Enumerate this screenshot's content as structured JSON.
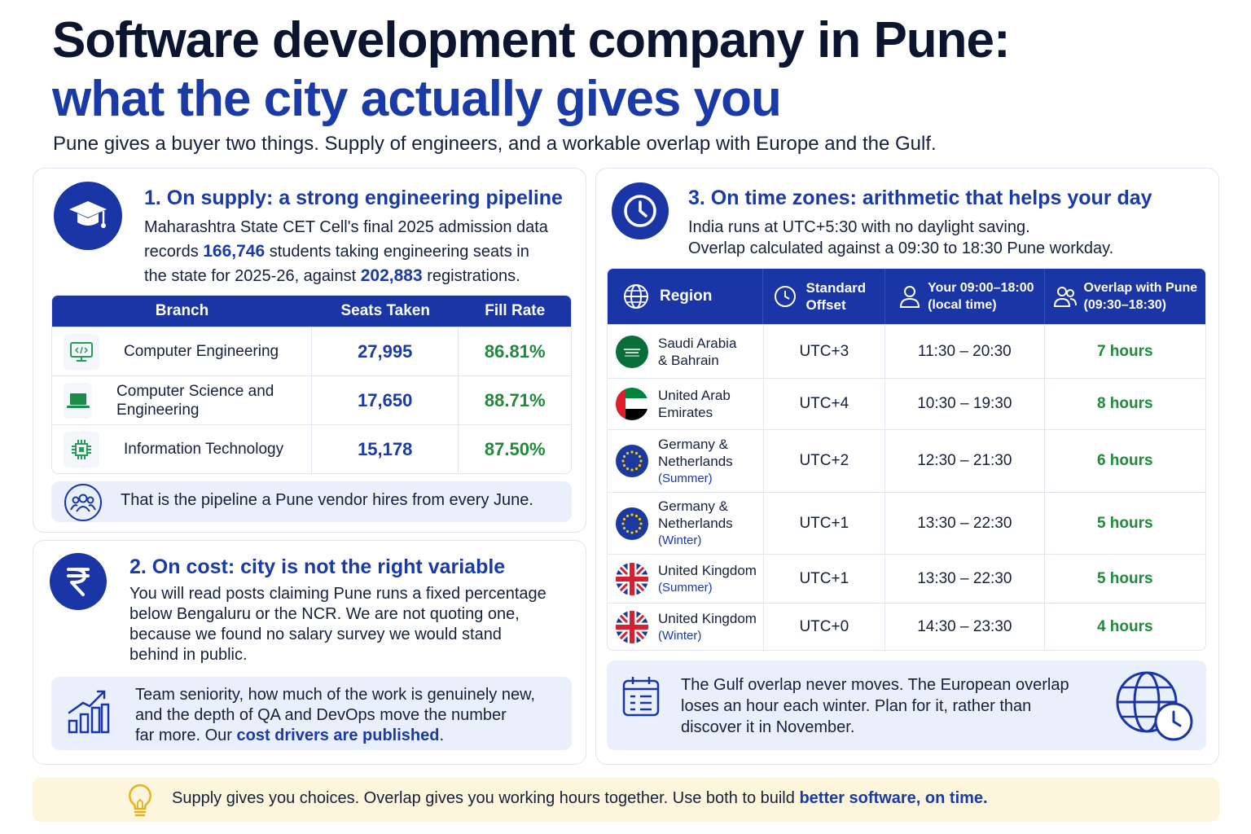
{
  "header": {
    "title_line1": "Software development company in Pune:",
    "title_line2": "what the city actually gives you",
    "subtitle": "Pune gives a buyer two things. Supply of engineers, and a workable overlap with Europe and the Gulf."
  },
  "supply": {
    "title": "1. On supply: a strong engineering pipeline",
    "text_line1": "Maharashtra State CET Cell's final 2025 admission data",
    "text_line2_pre": "records ",
    "students": "166,746",
    "text_line2_post": " students taking engineering seats in",
    "text_line3_pre": "the state for 2025-26, against ",
    "registrations": "202,883",
    "text_line3_post": " registrations.",
    "table_headers": [
      "Branch",
      "Seats Taken",
      "Fill Rate"
    ],
    "rows": [
      {
        "icon": "code-monitor-icon",
        "branch": "Computer Engineering",
        "seats": "27,995",
        "fill": "86.81%"
      },
      {
        "icon": "laptop-icon",
        "branch": "Computer Science and Engineering",
        "seats": "17,650",
        "fill": "88.71%"
      },
      {
        "icon": "chip-icon",
        "branch": "Information Technology",
        "seats": "15,178",
        "fill": "87.50%"
      }
    ],
    "note": "That is the pipeline a Pune vendor hires from every June."
  },
  "cost": {
    "title": "2. On cost: city is not the right variable",
    "text_line1": "You will read posts claiming Pune runs a fixed percentage",
    "text_line2": "below Bengaluru or the NCR. We are not quoting one,",
    "text_line3": "because we found no salary survey we would stand",
    "text_line4": "behind in public.",
    "note_line1": "Team seniority, how much of the work is genuinely new,",
    "note_line2": "and the depth of QA and DevOps move the number",
    "note_line3_pre": "far more. Our ",
    "note_link": "cost drivers are published",
    "note_line3_post": "."
  },
  "timezones": {
    "title": "3. On time zones: arithmetic that helps your day",
    "text_line1": "India runs at UTC+5:30 with no daylight saving.",
    "text_line2": "Overlap calculated against a 09:30 to 18:30 Pune workday.",
    "headers": {
      "region": "Region",
      "offset_l1": "Standard",
      "offset_l2": "Offset",
      "local_l1": "Your 09:00–18:00",
      "local_l2": "(local time)",
      "overlap_l1": "Overlap with Pune",
      "overlap_l2": "(09:30–18:30)"
    },
    "rows": [
      {
        "flag": "saudi-flag",
        "name_l1": "Saudi Arabia",
        "name_l2": "& Bahrain",
        "season": "",
        "offset": "UTC+3",
        "local": "11:30 – 20:30",
        "overlap": "7 hours"
      },
      {
        "flag": "uae-flag",
        "name_l1": "United Arab",
        "name_l2": "Emirates",
        "season": "",
        "offset": "UTC+4",
        "local": "10:30 – 19:30",
        "overlap": "8 hours"
      },
      {
        "flag": "eu-flag",
        "name_l1": "Germany &",
        "name_l2": "Netherlands",
        "season": "(Summer)",
        "offset": "UTC+2",
        "local": "12:30 – 21:30",
        "overlap": "6 hours"
      },
      {
        "flag": "eu-flag",
        "name_l1": "Germany &",
        "name_l2": "Netherlands",
        "season": "(Winter)",
        "offset": "UTC+1",
        "local": "13:30 – 22:30",
        "overlap": "5 hours"
      },
      {
        "flag": "uk-flag",
        "name_l1": "United Kingdom",
        "name_l2": "",
        "season": "(Summer)",
        "offset": "UTC+1",
        "local": "13:30 – 22:30",
        "overlap": "5 hours"
      },
      {
        "flag": "uk-flag",
        "name_l1": "United Kingdom",
        "name_l2": "",
        "season": "(Winter)",
        "offset": "UTC+0",
        "local": "14:30 – 23:30",
        "overlap": "4 hours"
      }
    ],
    "note_line1": "The Gulf overlap never moves. The European overlap",
    "note_line2": "loses an hour each winter. Plan for it, rather than",
    "note_line3": "discover it in November."
  },
  "footer": {
    "text": "Supply gives you choices. Overlap gives you working hours together. Use both to build ",
    "link": "better software, on time."
  },
  "colors": {
    "primary": "#1a36a6",
    "accent_text": "#1a3aa8",
    "success": "#1f8a3a",
    "note_bg": "#eaf0fb",
    "footer_bg": "#fdf5dc"
  }
}
